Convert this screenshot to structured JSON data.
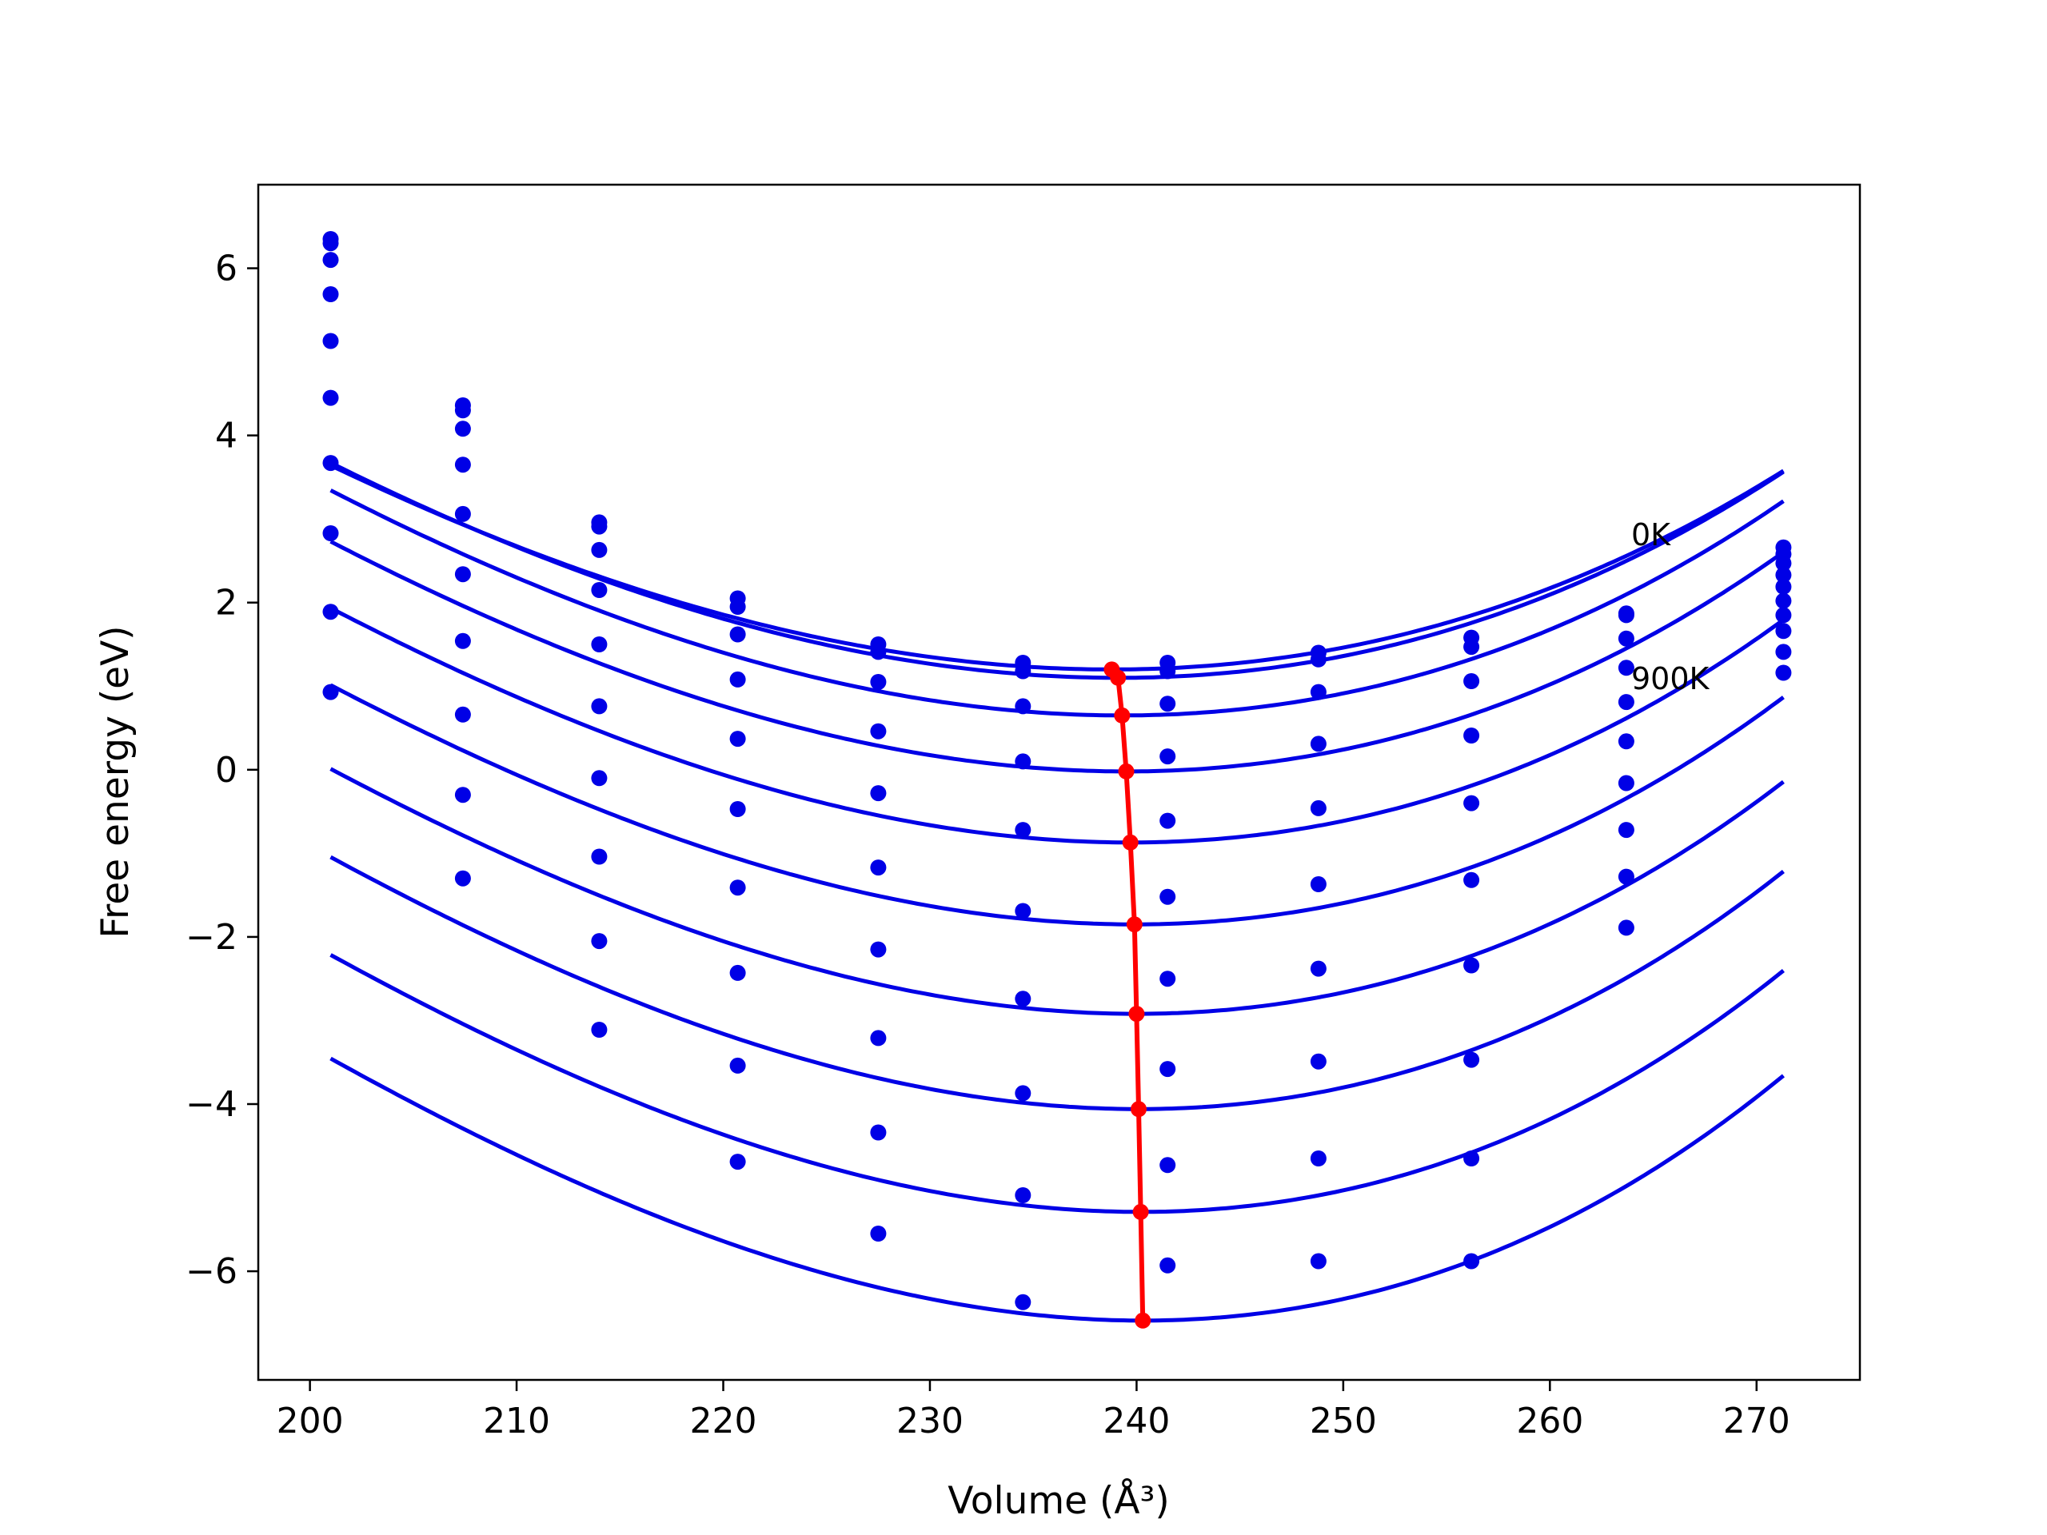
{
  "chart_data": {
    "type": "scatter",
    "xlabel": "Volume (Å³)",
    "ylabel": "Free energy (eV)",
    "xlim": [
      197.5,
      275
    ],
    "ylim": [
      -7.3,
      7.0
    ],
    "xticks": [
      200,
      210,
      220,
      230,
      240,
      250,
      260,
      270
    ],
    "yticks": [
      -6,
      -4,
      -2,
      0,
      2,
      4,
      6
    ],
    "xtick_labels": [
      "200",
      "210",
      "220",
      "230",
      "240",
      "250",
      "260",
      "270"
    ],
    "ytick_labels": [
      "−6",
      "−4",
      "−2",
      "0",
      "2",
      "4",
      "6"
    ],
    "grid": false,
    "legend": "none",
    "annotations": [
      {
        "text": "0K",
        "x": 263.8,
        "y": 2.7
      },
      {
        "text": "900K",
        "x": 263.8,
        "y": 1.0
      }
    ],
    "colors": {
      "curves": "#0000e6",
      "points": "#0000e6",
      "minimum_path": "#ff0000",
      "axes": "#000000"
    },
    "volumes": [
      201.0,
      207.4,
      214.0,
      220.7,
      227.5,
      234.5,
      241.5,
      248.8,
      256.2,
      263.7,
      271.3
    ],
    "series": [
      {
        "fit": {
          "vmin": 238.8,
          "fmin": 1.2,
          "a": 0.002,
          "b": 7.7e-06
        },
        "points": [
          6.35,
          4.36,
          2.96,
          2.05,
          1.5,
          1.28,
          1.28,
          1.4,
          1.58,
          1.87,
          2.66
        ]
      },
      {
        "fit": {
          "vmin": 239.1,
          "fmin": 1.1,
          "a": 0.0021,
          "b": 8.6e-06
        },
        "points": [
          6.3,
          4.3,
          2.91,
          1.95,
          1.41,
          1.18,
          1.18,
          1.32,
          1.47,
          1.85,
          2.58
        ]
      },
      {
        "fit": {
          "vmin": 239.3,
          "fmin": 0.65,
          "a": 0.0022,
          "b": 9.5e-06
        },
        "points": [
          6.1,
          4.08,
          2.63,
          1.62,
          1.05,
          0.76,
          0.79,
          0.93,
          1.06,
          1.57,
          2.47
        ]
      },
      {
        "fit": {
          "vmin": 239.5,
          "fmin": -0.02,
          "a": 0.00226,
          "b": 1.05e-05
        },
        "points": [
          5.69,
          3.65,
          2.15,
          1.08,
          0.46,
          0.1,
          0.16,
          0.31,
          0.41,
          1.22,
          2.33
        ]
      },
      {
        "fit": {
          "vmin": 239.7,
          "fmin": -0.87,
          "a": 0.00231,
          "b": 1.13e-05
        },
        "points": [
          5.13,
          3.06,
          1.5,
          0.37,
          -0.28,
          -0.72,
          -0.61,
          -0.46,
          -0.4,
          0.81,
          2.19
        ]
      },
      {
        "fit": {
          "vmin": 239.9,
          "fmin": -1.85,
          "a": 0.00237,
          "b": 1.23e-05
        },
        "points": [
          4.45,
          2.34,
          0.76,
          -0.47,
          -1.17,
          -1.69,
          -1.52,
          -1.37,
          -1.32,
          0.34,
          2.02
        ]
      },
      {
        "fit": {
          "vmin": 240.0,
          "fmin": -2.92,
          "a": 0.00243,
          "b": 1.29e-05
        },
        "points": [
          3.67,
          1.54,
          -0.1,
          -1.41,
          -2.15,
          -2.74,
          -2.5,
          -2.38,
          -2.34,
          -0.16,
          1.85
        ]
      },
      {
        "fit": {
          "vmin": 240.1,
          "fmin": -4.06,
          "a": 0.0025,
          "b": 1.35e-05
        },
        "points": [
          2.83,
          0.66,
          -1.04,
          -2.43,
          -3.21,
          -3.87,
          -3.58,
          -3.49,
          -3.47,
          -0.72,
          1.66
        ]
      },
      {
        "fit": {
          "vmin": 240.2,
          "fmin": -5.29,
          "a": 0.00255,
          "b": 1.4e-05
        },
        "points": [
          1.89,
          -0.3,
          -2.05,
          -3.54,
          -4.34,
          -5.09,
          -4.73,
          -4.65,
          -4.65,
          -1.28,
          1.41
        ]
      },
      {
        "fit": {
          "vmin": 240.3,
          "fmin": -6.59,
          "a": 0.0026,
          "b": 1.45e-05
        },
        "points": [
          0.93,
          -1.3,
          -3.11,
          -4.69,
          -5.55,
          -6.37,
          -5.93,
          -5.88,
          -5.88,
          -1.89,
          1.16
        ]
      }
    ]
  }
}
